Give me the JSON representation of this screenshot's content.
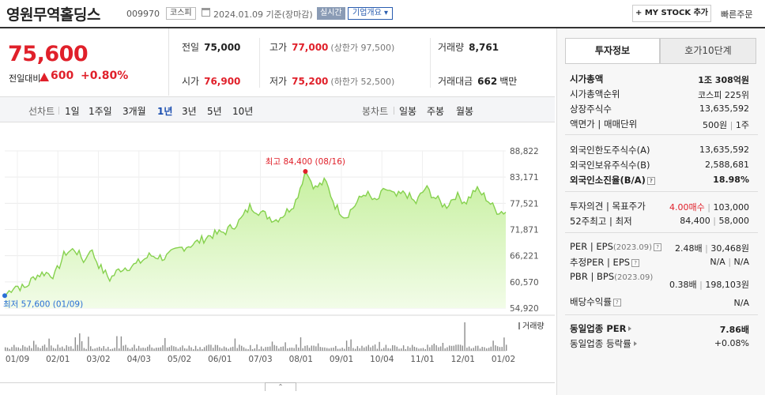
{
  "header": {
    "company_name": "영원무역홀딩스",
    "stock_code": "009970",
    "market_badge": "코스피",
    "date_text": "2024.01.09 기준(장마감)",
    "realtime_label": "실시간",
    "overview_label": "기업개요 ▾",
    "mystock_label": "+ MY STOCK 추가",
    "quick_order_label": "빠른주문"
  },
  "price": {
    "current": "75,600",
    "change_label": "전일대비",
    "change": "600",
    "change_pct": "+0.80%"
  },
  "stats": {
    "prev_close_label": "전일",
    "prev_close": "75,000",
    "high_label": "고가",
    "high": "77,000",
    "upper_limit": "(상한가 97,500)",
    "volume_label": "거래량",
    "volume": "8,761",
    "open_label": "시가",
    "open": "76,900",
    "low_label": "저가",
    "low": "75,200",
    "lower_limit": "(하한가 52,500)",
    "amount_label": "거래대금",
    "amount": "662",
    "amount_unit": "백만"
  },
  "period_bar": {
    "line_label": "선차트",
    "line_items": [
      "1일",
      "1주일",
      "3개월",
      "1년",
      "3년",
      "5년",
      "10년"
    ],
    "active": "1년",
    "candle_label": "봉차트",
    "candle_items": [
      "일봉",
      "주봉",
      "월봉"
    ]
  },
  "chart_data": {
    "type": "area",
    "y_ticks": [
      "88,822",
      "83,171",
      "77,521",
      "71,871",
      "66,221",
      "60,570",
      "54,920"
    ],
    "ylim": [
      54920,
      88822
    ],
    "x_labels": [
      "01/09",
      "02/01",
      "03/02",
      "04/03",
      "05/02",
      "06/01",
      "07/03",
      "08/01",
      "09/01",
      "10/04",
      "11/01",
      "12/01",
      "01/02"
    ],
    "high_label": "최고 84,400 (08/16)",
    "high_value": 84400,
    "low_label": "최저 57,600 (01/09)",
    "low_value": 57600,
    "volume_label": "거래량",
    "colors": {
      "line": "#86d14e",
      "fill_top": "#c7f0a0",
      "fill_bottom": "#f2fce8",
      "volume": "#8c8c8c",
      "high_marker": "#e0202a",
      "low_marker": "#2a6fd6"
    }
  },
  "right_panel": {
    "tabs": [
      "투자정보",
      "호가10단계"
    ],
    "market_cap_label": "시가총액",
    "market_cap": "1조 308억원",
    "market_cap_rank_label": "시가총액순위",
    "market_cap_rank": "코스피 225위",
    "shares_label": "상장주식수",
    "shares": "13,635,592",
    "par_label": "액면가",
    "unit_label": "매매단위",
    "par_value": "500원",
    "unit_value": "1주",
    "foreign_limit_label": "외국인한도주식수(A)",
    "foreign_limit": "13,635,592",
    "foreign_hold_label": "외국인보유주식수(B)",
    "foreign_hold": "2,588,681",
    "foreign_ratio_label": "외국인소진율(B/A)",
    "foreign_ratio": "18.98%",
    "opinion_label": "투자의견",
    "target_label": "목표주가",
    "opinion": "4.00매수",
    "target": "103,000",
    "week52_label": "52주최고",
    "week52_low_label": "최저",
    "week52_high": "84,400",
    "week52_low": "58,000",
    "per_label": "PER",
    "eps_label": "EPS",
    "per_year": "(2023.09)",
    "per": "2.48배",
    "eps": "30,468원",
    "est_per_label": "추정PER",
    "est_eps_label": "EPS",
    "est_per": "N/A",
    "est_eps": "N/A",
    "pbr_label": "PBR",
    "bps_label": "BPS",
    "pbr_year": "(2023.09)",
    "pbr": "0.38배",
    "bps": "198,103원",
    "dividend_label": "배당수익률",
    "dividend": "N/A",
    "sector_per_label": "동일업종 PER",
    "sector_per": "7.86배",
    "sector_change_label": "동일업종 등락률",
    "sector_change": "+0.08%"
  }
}
